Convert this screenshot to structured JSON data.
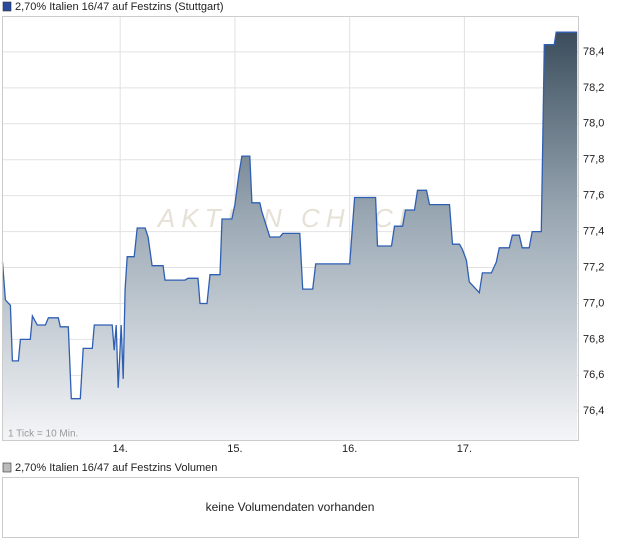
{
  "chart_data": {
    "type": "area",
    "title": "2,70% Italien 16/47 auf Festzins (Stuttgart)",
    "annotation": "1 Tick = 10 Min.",
    "watermark": "AKTIEN CHECK",
    "color": "#2f5fb3",
    "x": [
      12.974,
      13.0,
      13.043,
      13.061,
      13.113,
      13.13,
      13.217,
      13.235,
      13.278,
      13.348,
      13.374,
      13.461,
      13.478,
      13.548,
      13.574,
      13.652,
      13.678,
      13.757,
      13.774,
      13.93,
      13.948,
      13.965,
      13.983,
      14.009,
      14.026,
      14.043,
      14.061,
      14.122,
      14.148,
      14.217,
      14.243,
      14.278,
      14.374,
      14.391,
      14.565,
      14.591,
      14.678,
      14.696,
      14.757,
      14.783,
      14.87,
      14.887,
      14.974,
      15.0,
      15.035,
      15.061,
      15.13,
      15.148,
      15.217,
      15.235,
      15.304,
      15.391,
      15.417,
      15.565,
      15.591,
      15.678,
      15.704,
      16.0,
      16.043,
      16.226,
      16.243,
      16.365,
      16.391,
      16.461,
      16.487,
      16.565,
      16.591,
      16.67,
      16.696,
      16.87,
      16.896,
      16.957,
      16.983,
      17.017,
      17.043,
      17.13,
      17.157,
      17.235,
      17.278,
      17.304,
      17.391,
      17.417,
      17.478,
      17.504,
      17.565,
      17.591,
      17.67,
      17.696,
      17.783,
      17.8,
      17.983
    ],
    "values": [
      77.23,
      77.02,
      76.99,
      76.68,
      76.68,
      76.8,
      76.8,
      76.93,
      76.88,
      76.88,
      76.92,
      76.92,
      76.87,
      76.87,
      76.47,
      76.47,
      76.75,
      76.75,
      76.88,
      76.88,
      76.74,
      76.88,
      76.53,
      76.88,
      76.58,
      77.08,
      77.26,
      77.26,
      77.42,
      77.42,
      77.37,
      77.21,
      77.21,
      77.13,
      77.13,
      77.14,
      77.14,
      77.0,
      77.0,
      77.16,
      77.16,
      77.47,
      77.47,
      77.55,
      77.72,
      77.82,
      77.82,
      77.56,
      77.56,
      77.51,
      77.37,
      77.37,
      77.39,
      77.39,
      77.08,
      77.08,
      77.22,
      77.22,
      77.59,
      77.59,
      77.32,
      77.32,
      77.43,
      77.43,
      77.52,
      77.52,
      77.63,
      77.63,
      77.55,
      77.55,
      77.33,
      77.33,
      77.3,
      77.24,
      77.12,
      77.06,
      77.17,
      77.17,
      77.23,
      77.31,
      77.31,
      77.38,
      77.38,
      77.31,
      77.31,
      77.4,
      77.4,
      78.44,
      78.44,
      78.51,
      78.51
    ],
    "xlim": [
      12.97,
      17.99
    ],
    "ylim": [
      76.24,
      78.6
    ],
    "xticks": [
      {
        "value": 14,
        "label": "14."
      },
      {
        "value": 15,
        "label": "15."
      },
      {
        "value": 16,
        "label": "16."
      },
      {
        "value": 17,
        "label": "17."
      }
    ],
    "yticks": [
      {
        "value": 76.4,
        "label": "76,4"
      },
      {
        "value": 76.6,
        "label": "76,6"
      },
      {
        "value": 76.8,
        "label": "76,8"
      },
      {
        "value": 77.0,
        "label": "77,0"
      },
      {
        "value": 77.2,
        "label": "77,2"
      },
      {
        "value": 77.4,
        "label": "77,4"
      },
      {
        "value": 77.6,
        "label": "77,6"
      },
      {
        "value": 77.8,
        "label": "77,8"
      },
      {
        "value": 78.0,
        "label": "78,0"
      },
      {
        "value": 78.2,
        "label": "78,2"
      },
      {
        "value": 78.4,
        "label": "78,4"
      }
    ],
    "grid": true
  },
  "volume_panel": {
    "title": "2,70% Italien 16/47 auf Festzins Volumen",
    "message": "keine Volumendaten vorhanden"
  }
}
